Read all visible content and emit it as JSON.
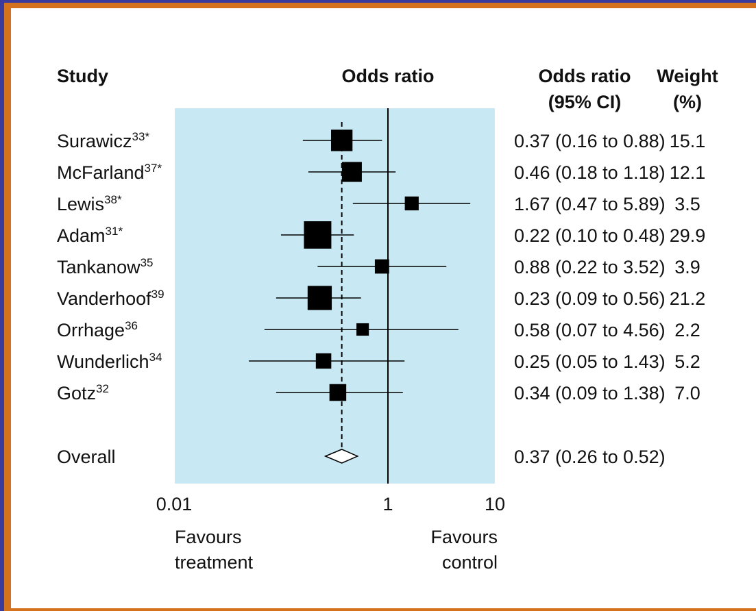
{
  "colors": {
    "background": "#3b3b9e",
    "border_accent": "#d4721e",
    "panel": "#ffffff",
    "plot_bg": "#c8e9f3",
    "marker": "#000000"
  },
  "headers": {
    "study": "Study",
    "odds_ratio": "Odds ratio",
    "or_ci_line1": "Odds ratio",
    "or_ci_line2": "(95% CI)",
    "weight_line1": "Weight",
    "weight_line2": "(%)"
  },
  "footer": {
    "left_line1": "Favours",
    "left_line2": "treatment",
    "right_line1": "Favours",
    "right_line2": "control"
  },
  "chart_data": {
    "type": "forest",
    "x_scale": "log",
    "xlim": [
      0.01,
      10
    ],
    "x_ticks": [
      {
        "value": 0.01,
        "label": "0.01"
      },
      {
        "value": 1,
        "label": "1"
      },
      {
        "value": 10,
        "label": "10"
      }
    ],
    "reference_line": 1,
    "pooled_line": 0.37,
    "studies": [
      {
        "name": "Surawicz",
        "sup": "33*",
        "or": 0.37,
        "lo": 0.16,
        "hi": 0.88,
        "or_text": "0.37 (0.16 to 0.88)",
        "weight": 15.1,
        "weight_text": "15.1"
      },
      {
        "name": "McFarland",
        "sup": "37*",
        "or": 0.46,
        "lo": 0.18,
        "hi": 1.18,
        "or_text": "0.46 (0.18 to 1.18)",
        "weight": 12.1,
        "weight_text": "12.1"
      },
      {
        "name": "Lewis",
        "sup": "38*",
        "or": 1.67,
        "lo": 0.47,
        "hi": 5.89,
        "or_text": "1.67 (0.47 to 5.89)",
        "weight": 3.5,
        "weight_text": "3.5"
      },
      {
        "name": "Adam",
        "sup": "31*",
        "or": 0.22,
        "lo": 0.1,
        "hi": 0.48,
        "or_text": "0.22 (0.10 to 0.48)",
        "weight": 29.9,
        "weight_text": "29.9"
      },
      {
        "name": "Tankanow",
        "sup": "35",
        "or": 0.88,
        "lo": 0.22,
        "hi": 3.52,
        "or_text": "0.88 (0.22 to 3.52)",
        "weight": 3.9,
        "weight_text": "3.9"
      },
      {
        "name": "Vanderhoof",
        "sup": "39",
        "or": 0.23,
        "lo": 0.09,
        "hi": 0.56,
        "or_text": "0.23 (0.09 to 0.56)",
        "weight": 21.2,
        "weight_text": "21.2"
      },
      {
        "name": "Orrhage",
        "sup": "36",
        "or": 0.58,
        "lo": 0.07,
        "hi": 4.56,
        "or_text": "0.58 (0.07 to 4.56)",
        "weight": 2.2,
        "weight_text": "2.2"
      },
      {
        "name": "Wunderlich",
        "sup": "34",
        "or": 0.25,
        "lo": 0.05,
        "hi": 1.43,
        "or_text": "0.25 (0.05 to 1.43)",
        "weight": 5.2,
        "weight_text": "5.2"
      },
      {
        "name": "Gotz",
        "sup": "32",
        "or": 0.34,
        "lo": 0.09,
        "hi": 1.38,
        "or_text": "0.34 (0.09 to 1.38)",
        "weight": 7.0,
        "weight_text": "7.0"
      }
    ],
    "overall": {
      "name": "Overall",
      "or": 0.37,
      "lo": 0.26,
      "hi": 0.52,
      "or_text": "0.37 (0.26 to 0.52)"
    }
  }
}
